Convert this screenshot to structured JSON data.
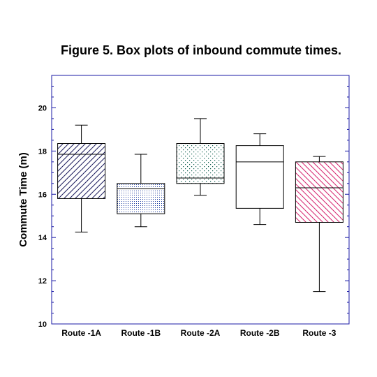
{
  "chart_data": {
    "type": "box",
    "title": "Figure 5. Box plots of inbound commute times.",
    "xlabel": "",
    "ylabel": "Commute Time (m)",
    "ylim": [
      10,
      21.5
    ],
    "yticks": [
      10,
      12,
      14,
      16,
      18,
      20
    ],
    "grid": false,
    "categories": [
      "Route -1A",
      "Route -1B",
      "Route -2A",
      "Route -2B",
      "Route -3"
    ],
    "boxes": [
      {
        "name": "Route -1A",
        "min": 14.25,
        "q1": 15.8,
        "median": 17.85,
        "q3": 18.35,
        "max": 19.2,
        "pattern": "diagonal-up",
        "color": "#1a1a5c"
      },
      {
        "name": "Route -1B",
        "min": 14.5,
        "q1": 15.1,
        "median": 16.25,
        "q3": 16.5,
        "max": 17.85,
        "pattern": "dense-dots",
        "color": "#1a3aa0"
      },
      {
        "name": "Route -2A",
        "min": 15.95,
        "q1": 16.5,
        "median": 16.75,
        "q3": 18.35,
        "max": 19.5,
        "pattern": "sparse-dots",
        "color": "#0d5e4c"
      },
      {
        "name": "Route -2B",
        "min": 14.6,
        "q1": 15.35,
        "median": 17.5,
        "q3": 18.25,
        "max": 18.8,
        "pattern": "none",
        "color": "#000000"
      },
      {
        "name": "Route -3",
        "min": 11.5,
        "q1": 14.7,
        "median": 16.3,
        "q3": 17.5,
        "max": 17.75,
        "pattern": "diagonal-down",
        "color": "#d6246e"
      }
    ],
    "frame_color": "#1a1aa6"
  }
}
